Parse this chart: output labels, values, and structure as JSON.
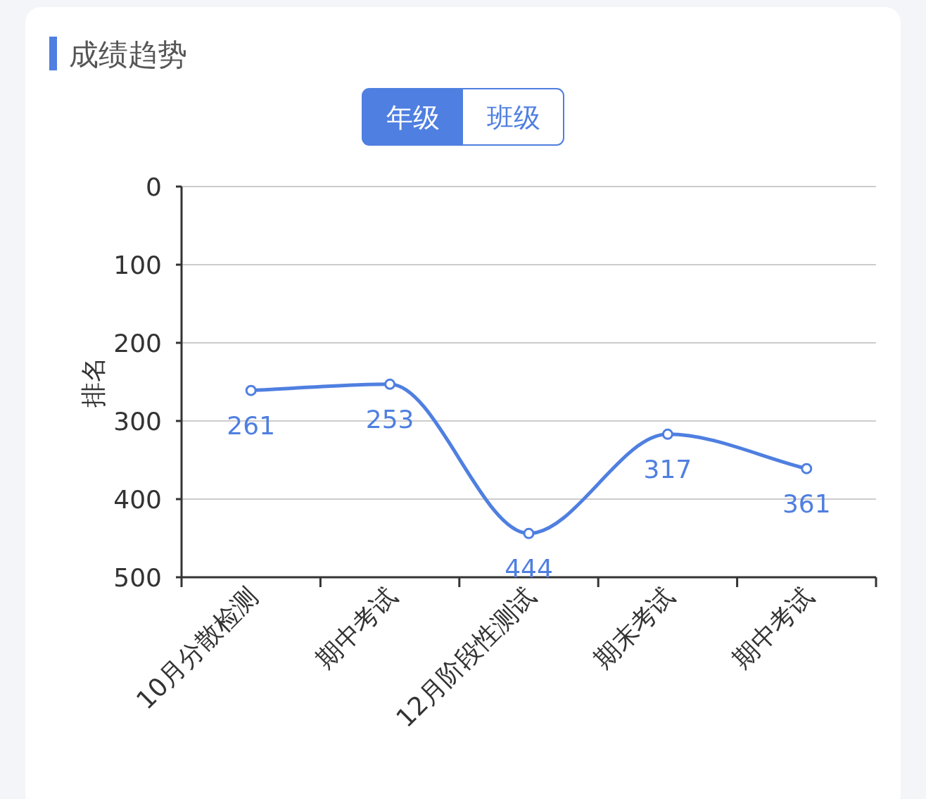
{
  "chart_data": {
    "type": "line",
    "title": "成绩趋势",
    "annotations": [
      "年级",
      "班级"
    ],
    "ylabel": "排名",
    "categories": [
      "10月分散检测",
      "期中考试",
      "12月阶段性测试",
      "期末考试",
      "期中考试"
    ],
    "values": [
      261,
      253,
      444,
      317,
      361
    ],
    "color": "#4f7fe0",
    "ylim": [
      500,
      0
    ],
    "yticks": [
      0,
      100,
      200,
      300,
      400,
      500
    ],
    "grid": "y",
    "marker": "circle",
    "data_labels": true
  }
}
